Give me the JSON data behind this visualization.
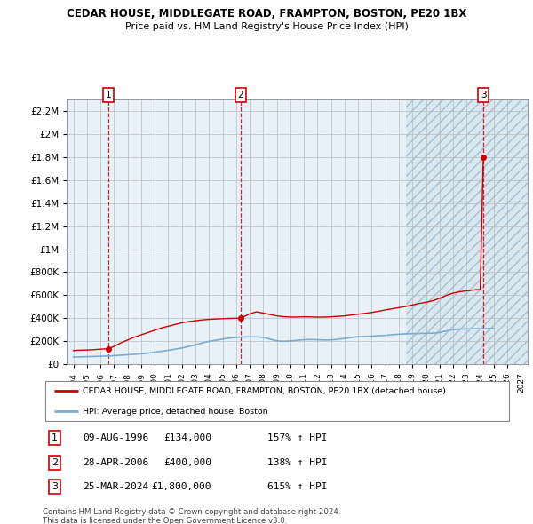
{
  "title1": "CEDAR HOUSE, MIDDLEGATE ROAD, FRAMPTON, BOSTON, PE20 1BX",
  "title2": "Price paid vs. HM Land Registry's House Price Index (HPI)",
  "xlim": [
    1993.5,
    2027.5
  ],
  "ylim": [
    0,
    2300000
  ],
  "yticks": [
    0,
    200000,
    400000,
    600000,
    800000,
    1000000,
    1200000,
    1400000,
    1600000,
    1800000,
    2000000,
    2200000
  ],
  "ytick_labels": [
    "£0",
    "£200K",
    "£400K",
    "£600K",
    "£800K",
    "£1M",
    "£1.2M",
    "£1.4M",
    "£1.6M",
    "£1.8M",
    "£2M",
    "£2.2M"
  ],
  "xticks": [
    1994,
    1995,
    1996,
    1997,
    1998,
    1999,
    2000,
    2001,
    2002,
    2003,
    2004,
    2005,
    2006,
    2007,
    2008,
    2009,
    2010,
    2011,
    2012,
    2013,
    2014,
    2015,
    2016,
    2017,
    2018,
    2019,
    2020,
    2021,
    2022,
    2023,
    2024,
    2025,
    2026,
    2027
  ],
  "sale_years": [
    1996.6,
    2006.33,
    2024.23
  ],
  "sale_prices": [
    134000,
    400000,
    1800000
  ],
  "sale_labels": [
    "1",
    "2",
    "3"
  ],
  "sale_dates": [
    "09-AUG-1996",
    "28-APR-2006",
    "25-MAR-2024"
  ],
  "sale_price_labels": [
    "£134,000",
    "£400,000",
    "£1,800,000"
  ],
  "sale_hpi_labels": [
    "157% ↑ HPI",
    "138% ↑ HPI",
    "615% ↑ HPI"
  ],
  "hpi_x": [
    1994.0,
    1994.25,
    1994.5,
    1994.75,
    1995.0,
    1995.25,
    1995.5,
    1995.75,
    1996.0,
    1996.25,
    1996.5,
    1996.75,
    1997.0,
    1997.25,
    1997.5,
    1997.75,
    1998.0,
    1998.25,
    1998.5,
    1998.75,
    1999.0,
    1999.25,
    1999.5,
    1999.75,
    2000.0,
    2000.25,
    2000.5,
    2000.75,
    2001.0,
    2001.25,
    2001.5,
    2001.75,
    2002.0,
    2002.25,
    2002.5,
    2002.75,
    2003.0,
    2003.25,
    2003.5,
    2003.75,
    2004.0,
    2004.25,
    2004.5,
    2004.75,
    2005.0,
    2005.25,
    2005.5,
    2005.75,
    2006.0,
    2006.25,
    2006.5,
    2006.75,
    2007.0,
    2007.25,
    2007.5,
    2007.75,
    2008.0,
    2008.25,
    2008.5,
    2008.75,
    2009.0,
    2009.25,
    2009.5,
    2009.75,
    2010.0,
    2010.25,
    2010.5,
    2010.75,
    2011.0,
    2011.25,
    2011.5,
    2011.75,
    2012.0,
    2012.25,
    2012.5,
    2012.75,
    2013.0,
    2013.25,
    2013.5,
    2013.75,
    2014.0,
    2014.25,
    2014.5,
    2014.75,
    2015.0,
    2015.25,
    2015.5,
    2015.75,
    2016.0,
    2016.25,
    2016.5,
    2016.75,
    2017.0,
    2017.25,
    2017.5,
    2017.75,
    2018.0,
    2018.25,
    2018.5,
    2018.75,
    2019.0,
    2019.25,
    2019.5,
    2019.75,
    2020.0,
    2020.25,
    2020.5,
    2020.75,
    2021.0,
    2021.25,
    2021.5,
    2021.75,
    2022.0,
    2022.25,
    2022.5,
    2022.75,
    2023.0,
    2023.25,
    2023.5,
    2023.75,
    2024.0,
    2024.25,
    2024.5,
    2024.75,
    2025.0
  ],
  "hpi_y": [
    62000,
    63000,
    63500,
    64000,
    65000,
    66000,
    67000,
    68000,
    69000,
    70000,
    71000,
    72000,
    74000,
    76000,
    78000,
    80000,
    82000,
    84000,
    86000,
    88000,
    90000,
    93000,
    96000,
    100000,
    104000,
    108000,
    112000,
    116000,
    120000,
    125000,
    130000,
    135000,
    140000,
    147000,
    154000,
    161000,
    168000,
    176000,
    184000,
    192000,
    198000,
    203000,
    208000,
    213000,
    218000,
    222000,
    226000,
    230000,
    233000,
    235000,
    236000,
    237000,
    238000,
    238000,
    237000,
    235000,
    232000,
    226000,
    218000,
    210000,
    203000,
    200000,
    199000,
    200000,
    202000,
    204000,
    207000,
    210000,
    212000,
    214000,
    214000,
    213000,
    212000,
    211000,
    210000,
    210000,
    211000,
    213000,
    216000,
    220000,
    224000,
    228000,
    232000,
    236000,
    238000,
    240000,
    241000,
    242000,
    243000,
    245000,
    247000,
    248000,
    250000,
    253000,
    256000,
    258000,
    260000,
    262000,
    263000,
    264000,
    265000,
    266000,
    267000,
    268000,
    268000,
    269000,
    270000,
    272000,
    275000,
    282000,
    288000,
    295000,
    300000,
    303000,
    305000,
    306000,
    306000,
    307000,
    308000,
    308000,
    308000,
    309000,
    310000,
    311000,
    312000
  ],
  "house_x": [
    1994.0,
    1994.25,
    1994.5,
    1994.75,
    1995.0,
    1995.25,
    1995.5,
    1995.75,
    1996.0,
    1996.25,
    1996.5,
    1996.6,
    1997.0,
    1997.5,
    1998.0,
    1998.5,
    1999.0,
    1999.5,
    2000.0,
    2000.5,
    2001.0,
    2001.5,
    2002.0,
    2002.5,
    2003.0,
    2003.5,
    2004.0,
    2004.5,
    2005.0,
    2005.5,
    2006.0,
    2006.33,
    2006.5,
    2007.0,
    2007.5,
    2008.0,
    2008.5,
    2009.0,
    2009.5,
    2010.0,
    2010.5,
    2011.0,
    2011.5,
    2012.0,
    2012.5,
    2013.0,
    2013.5,
    2014.0,
    2014.5,
    2015.0,
    2015.5,
    2016.0,
    2016.5,
    2017.0,
    2017.5,
    2018.0,
    2018.5,
    2019.0,
    2019.5,
    2020.0,
    2020.5,
    2021.0,
    2021.5,
    2022.0,
    2022.5,
    2023.0,
    2023.25,
    2023.5,
    2023.75,
    2024.0,
    2024.23
  ],
  "house_y": [
    118000,
    120000,
    121000,
    122000,
    123000,
    124000,
    126000,
    128000,
    130000,
    132000,
    133000,
    134000,
    155000,
    185000,
    210000,
    235000,
    255000,
    275000,
    295000,
    315000,
    330000,
    345000,
    360000,
    370000,
    378000,
    385000,
    390000,
    393000,
    396000,
    398000,
    399000,
    400000,
    410000,
    438000,
    455000,
    445000,
    432000,
    420000,
    413000,
    410000,
    410000,
    412000,
    411000,
    409000,
    410000,
    412000,
    416000,
    420000,
    428000,
    435000,
    442000,
    450000,
    460000,
    472000,
    482000,
    492000,
    502000,
    515000,
    528000,
    538000,
    552000,
    572000,
    598000,
    618000,
    630000,
    638000,
    640000,
    645000,
    648000,
    650000,
    1800000
  ],
  "red_color": "#cc0000",
  "blue_color": "#7aadcf",
  "hatch_bg_color": "#d8e8f0",
  "plain_bg_color": "#e8f0f8",
  "grid_color": "#bbbbbb",
  "footnote1": "Contains HM Land Registry data © Crown copyright and database right 2024.",
  "footnote2": "This data is licensed under the Open Government Licence v3.0.",
  "legend_label_red": "CEDAR HOUSE, MIDDLEGATE ROAD, FRAMPTON, BOSTON, PE20 1BX (detached house)",
  "legend_label_blue": "HPI: Average price, detached house, Boston"
}
